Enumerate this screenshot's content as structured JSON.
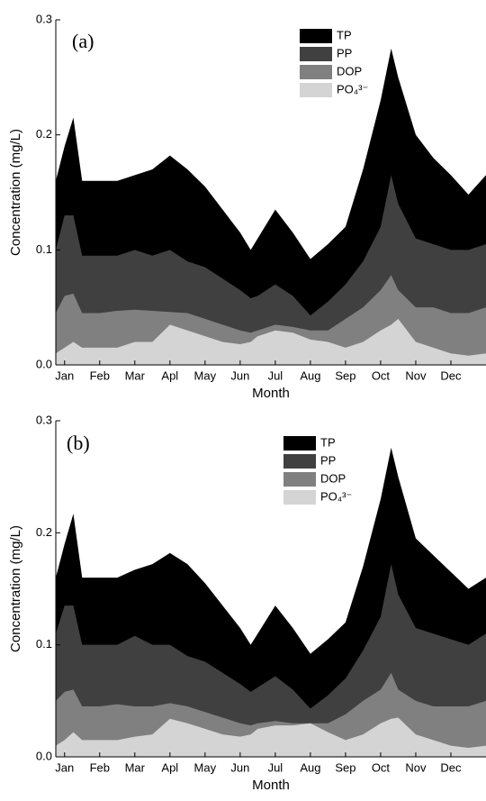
{
  "chart_data": [
    {
      "type": "area",
      "annotation": "(a)",
      "xlabel": "Month",
      "ylabel": "Concentration (mg/L)",
      "x": [
        0.75,
        1,
        1.25,
        1.5,
        2,
        2.5,
        3,
        3.5,
        4,
        4.5,
        5,
        5.5,
        6,
        6.3,
        6.5,
        7,
        7.5,
        8,
        8.5,
        9,
        9.5,
        10,
        10.3,
        10.5,
        11,
        11.5,
        12,
        12.5,
        13
      ],
      "xlim": [
        0.75,
        13
      ],
      "xticks": [
        {
          "value": 1,
          "label": "Jan"
        },
        {
          "value": 2,
          "label": "Feb"
        },
        {
          "value": 3,
          "label": "Mar"
        },
        {
          "value": 4,
          "label": "Apl"
        },
        {
          "value": 5,
          "label": "May"
        },
        {
          "value": 6,
          "label": "Jun"
        },
        {
          "value": 7,
          "label": "Jul"
        },
        {
          "value": 8,
          "label": "Aug"
        },
        {
          "value": 9,
          "label": "Sep"
        },
        {
          "value": 10,
          "label": "Oct"
        },
        {
          "value": 11,
          "label": "Nov"
        },
        {
          "value": 12,
          "label": "Dec"
        }
      ],
      "ylim": [
        0,
        0.3
      ],
      "yticks": [
        {
          "value": 0,
          "label": "0.0"
        },
        0.1,
        0.2,
        0.3
      ],
      "series": [
        {
          "name": "TP",
          "color": "#000000",
          "values": [
            0.16,
            0.19,
            0.215,
            0.16,
            0.16,
            0.16,
            0.165,
            0.17,
            0.182,
            0.17,
            0.155,
            0.135,
            0.115,
            0.1,
            0.11,
            0.135,
            0.115,
            0.092,
            0.105,
            0.12,
            0.17,
            0.23,
            0.275,
            0.25,
            0.2,
            0.18,
            0.165,
            0.148,
            0.165
          ]
        },
        {
          "name": "PP",
          "color": "#404040",
          "values": [
            0.1,
            0.13,
            0.13,
            0.095,
            0.095,
            0.095,
            0.1,
            0.095,
            0.1,
            0.09,
            0.085,
            0.075,
            0.065,
            0.058,
            0.06,
            0.07,
            0.06,
            0.043,
            0.055,
            0.07,
            0.09,
            0.12,
            0.165,
            0.14,
            0.11,
            0.105,
            0.1,
            0.1,
            0.105
          ]
        },
        {
          "name": "DOP",
          "color": "#808080",
          "values": [
            0.045,
            0.06,
            0.062,
            0.045,
            0.045,
            0.047,
            0.048,
            0.047,
            0.046,
            0.045,
            0.04,
            0.035,
            0.03,
            0.028,
            0.03,
            0.035,
            0.033,
            0.03,
            0.03,
            0.04,
            0.05,
            0.065,
            0.078,
            0.065,
            0.05,
            0.05,
            0.045,
            0.045,
            0.05
          ]
        },
        {
          "name": "PO₄³⁻",
          "color": "#d4d4d4",
          "values": [
            0.01,
            0.015,
            0.02,
            0.015,
            0.015,
            0.015,
            0.02,
            0.02,
            0.035,
            0.03,
            0.025,
            0.02,
            0.018,
            0.02,
            0.025,
            0.03,
            0.028,
            0.022,
            0.02,
            0.015,
            0.02,
            0.03,
            0.035,
            0.04,
            0.02,
            0.015,
            0.01,
            0.008,
            0.01
          ]
        }
      ]
    },
    {
      "type": "area",
      "annotation": "(b)",
      "xlabel": "Month",
      "ylabel": "Concentration (mg/L)",
      "x": [
        0.75,
        1,
        1.25,
        1.5,
        2,
        2.5,
        3,
        3.5,
        4,
        4.5,
        5,
        5.5,
        6,
        6.3,
        6.5,
        7,
        7.5,
        8,
        8.5,
        9,
        9.5,
        10,
        10.3,
        10.5,
        11,
        11.5,
        12,
        12.5,
        13
      ],
      "xlim": [
        0.75,
        13
      ],
      "xticks": [
        {
          "value": 1,
          "label": "Jan"
        },
        {
          "value": 2,
          "label": "Feb"
        },
        {
          "value": 3,
          "label": "Mar"
        },
        {
          "value": 4,
          "label": "Apl"
        },
        {
          "value": 5,
          "label": "May"
        },
        {
          "value": 6,
          "label": "Jun"
        },
        {
          "value": 7,
          "label": "Jul"
        },
        {
          "value": 8,
          "label": "Aug"
        },
        {
          "value": 9,
          "label": "Sep"
        },
        {
          "value": 10,
          "label": "Oct"
        },
        {
          "value": 11,
          "label": "Nov"
        },
        {
          "value": 12,
          "label": "Dec"
        }
      ],
      "ylim": [
        0,
        0.3
      ],
      "yticks": [
        {
          "value": 0,
          "label": "0.0"
        },
        0.1,
        0.2,
        0.3
      ],
      "series": [
        {
          "name": "TP",
          "color": "#000000",
          "values": [
            0.16,
            0.19,
            0.217,
            0.16,
            0.16,
            0.16,
            0.167,
            0.172,
            0.182,
            0.172,
            0.155,
            0.135,
            0.115,
            0.1,
            0.11,
            0.135,
            0.115,
            0.092,
            0.105,
            0.12,
            0.17,
            0.23,
            0.276,
            0.25,
            0.195,
            0.18,
            0.165,
            0.15,
            0.16
          ]
        },
        {
          "name": "PP",
          "color": "#404040",
          "values": [
            0.11,
            0.135,
            0.135,
            0.1,
            0.1,
            0.1,
            0.108,
            0.1,
            0.1,
            0.09,
            0.085,
            0.075,
            0.065,
            0.058,
            0.062,
            0.072,
            0.06,
            0.043,
            0.055,
            0.07,
            0.095,
            0.125,
            0.172,
            0.145,
            0.115,
            0.11,
            0.105,
            0.1,
            0.11
          ]
        },
        {
          "name": "DOP",
          "color": "#808080",
          "values": [
            0.05,
            0.058,
            0.06,
            0.045,
            0.045,
            0.047,
            0.045,
            0.045,
            0.048,
            0.045,
            0.04,
            0.035,
            0.03,
            0.028,
            0.03,
            0.032,
            0.03,
            0.03,
            0.03,
            0.038,
            0.05,
            0.06,
            0.075,
            0.06,
            0.05,
            0.045,
            0.045,
            0.045,
            0.05
          ]
        },
        {
          "name": "PO₄³⁻",
          "color": "#d4d4d4",
          "values": [
            0.01,
            0.015,
            0.022,
            0.015,
            0.015,
            0.015,
            0.018,
            0.02,
            0.034,
            0.03,
            0.025,
            0.02,
            0.018,
            0.02,
            0.025,
            0.028,
            0.028,
            0.03,
            0.022,
            0.015,
            0.02,
            0.03,
            0.034,
            0.035,
            0.02,
            0.015,
            0.01,
            0.008,
            0.01
          ]
        }
      ]
    }
  ]
}
